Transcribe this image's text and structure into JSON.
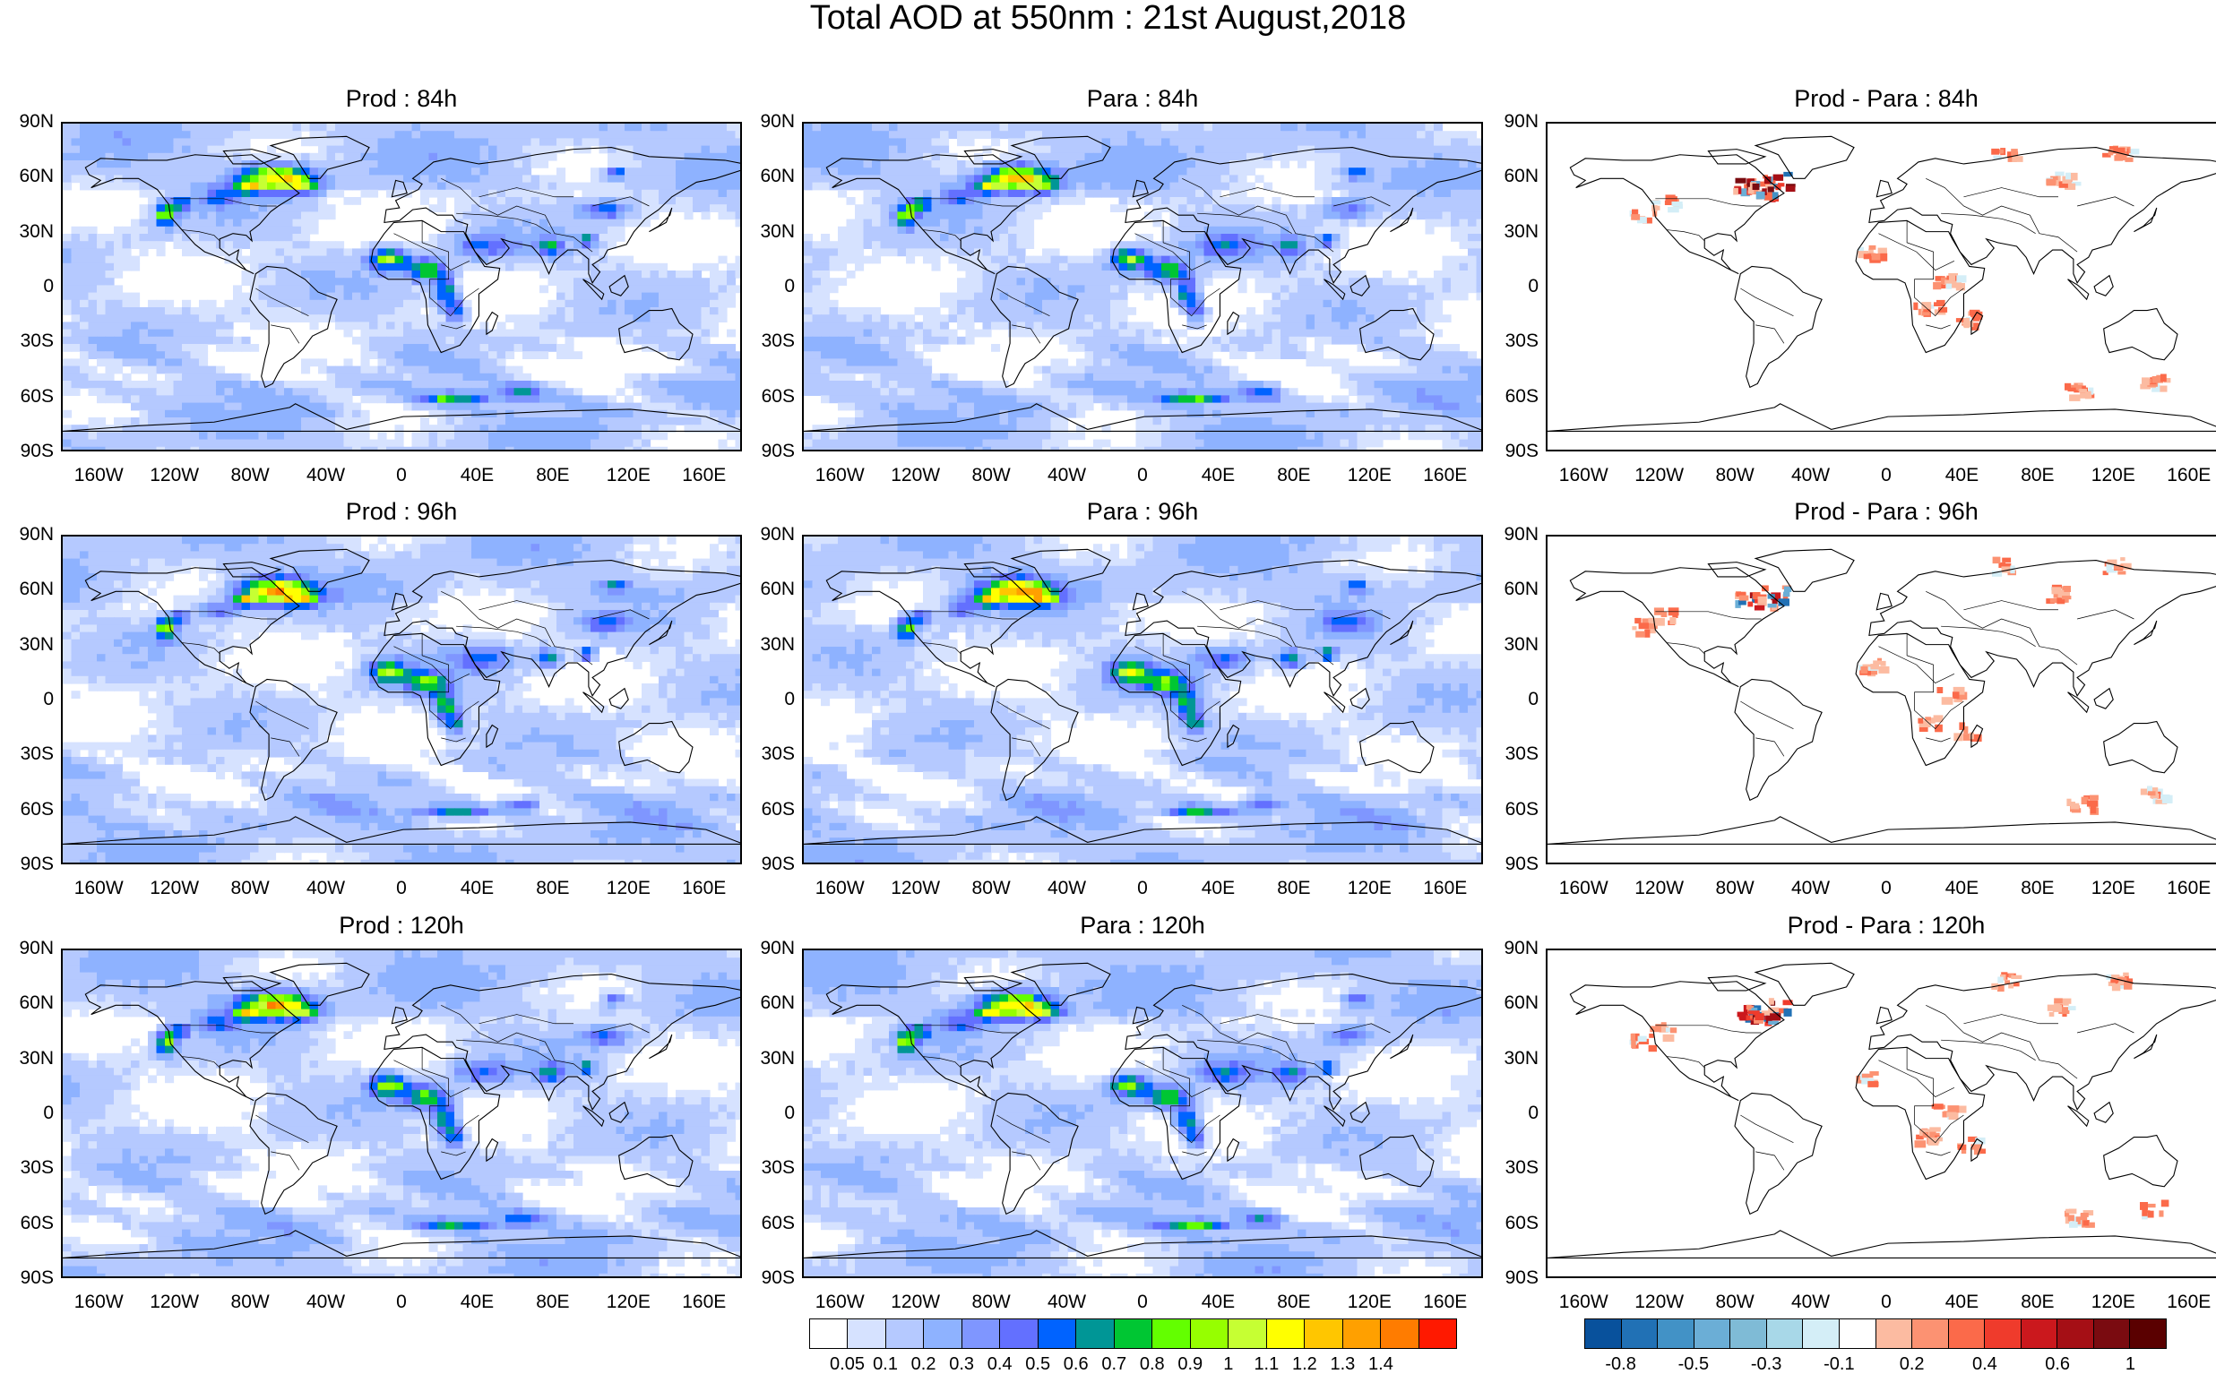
{
  "title": "Total AOD at 550nm : 21st August,2018",
  "panels": [
    {
      "title": "Prod : 84h",
      "kind": "aod"
    },
    {
      "title": "Para : 84h",
      "kind": "aod"
    },
    {
      "title": "Prod - Para : 84h",
      "kind": "diff"
    },
    {
      "title": "Prod : 96h",
      "kind": "aod"
    },
    {
      "title": "Para : 96h",
      "kind": "aod"
    },
    {
      "title": "Prod - Para : 96h",
      "kind": "diff"
    },
    {
      "title": "Prod : 120h",
      "kind": "aod"
    },
    {
      "title": "Para : 120h",
      "kind": "aod"
    },
    {
      "title": "Prod - Para : 120h",
      "kind": "diff"
    }
  ],
  "lat_ticks": [
    "90N",
    "60N",
    "30N",
    "0",
    "30S",
    "60S",
    "90S"
  ],
  "lon_ticks": [
    "160W",
    "120W",
    "80W",
    "40W",
    "0",
    "40E",
    "80E",
    "120E",
    "160E"
  ],
  "aod_colorbar": {
    "colors": [
      "#ffffff",
      "#d6e2ff",
      "#b5c9ff",
      "#8eb2ff",
      "#7f96ff",
      "#6370ff",
      "#0063ff",
      "#009696",
      "#00c633",
      "#63ff00",
      "#96ff00",
      "#c6ff33",
      "#ffff00",
      "#ffc600",
      "#ffa000",
      "#ff7c00",
      "#ff1900"
    ],
    "labels": [
      "0.05",
      "0.1",
      "0.2",
      "0.3",
      "0.4",
      "0.5",
      "0.6",
      "0.7",
      "0.8",
      "0.9",
      "1",
      "1.1",
      "1.2",
      "1.3",
      "1.4"
    ]
  },
  "diff_colorbar": {
    "colors": [
      "#08519c",
      "#2171b5",
      "#4292c6",
      "#6baed6",
      "#7fbbd6",
      "#a8d8e8",
      "#d4eef7",
      "#ffffff",
      "#fcbba1",
      "#fc9272",
      "#fb6a4a",
      "#ef3b2c",
      "#cb181d",
      "#a50f15",
      "#7a0b10",
      "#5a0000"
    ],
    "labels": [
      "-0.8",
      "-0.5",
      "-0.3",
      "-0.1",
      "0.2",
      "0.4",
      "0.6",
      "1"
    ]
  }
}
